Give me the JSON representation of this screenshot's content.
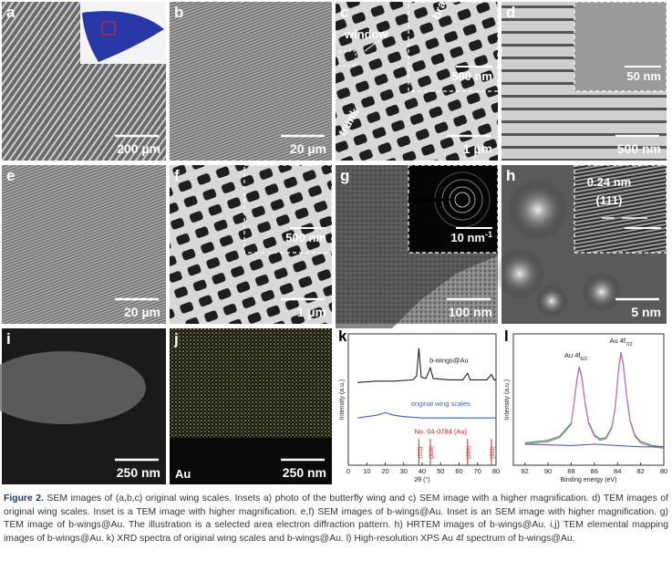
{
  "panels": [
    {
      "label": "a",
      "scale_bar": "200 µm"
    },
    {
      "label": "b",
      "scale_bar": "20 µm"
    },
    {
      "label": "c",
      "scale_bar": "1 µm",
      "inset_scale_bar": "500 nm",
      "notes": [
        "window",
        "branch",
        "trunk"
      ]
    },
    {
      "label": "d",
      "scale_bar": "500 nm",
      "inset_scale_bar": "50 nm"
    },
    {
      "label": "e",
      "scale_bar": "20 µm"
    },
    {
      "label": "f",
      "scale_bar": "1 µm",
      "inset_scale_bar": "500 nm"
    },
    {
      "label": "g",
      "scale_bar": "100 nm",
      "inset_scale_bar": {
        "text": "10 nm",
        "sup": "-1"
      }
    },
    {
      "label": "h",
      "scale_bar": "5 nm",
      "notes": [
        "0.24 nm",
        "(111)"
      ]
    },
    {
      "label": "i",
      "scale_bar": "250 nm"
    },
    {
      "label": "j",
      "scale_bar": "250 nm",
      "notes": [
        "Au"
      ]
    },
    {
      "label": "k",
      "type": "line",
      "xlabel": "2θ (°)",
      "ylabel": "Intensity (a.u.)",
      "xlim": [
        0,
        80
      ],
      "xticks": [
        0,
        10,
        20,
        30,
        40,
        50,
        60,
        70,
        80
      ],
      "ylim": [
        0,
        10
      ],
      "series": [
        {
          "name": "b-wings@Au",
          "color": "#222222",
          "x": [
            5,
            15,
            25,
            35,
            37,
            38.2,
            39.5,
            42,
            44.4,
            46,
            55,
            62,
            64.6,
            66,
            75,
            77.5,
            79,
            80
          ],
          "values": [
            6.3,
            6.4,
            6.4,
            6.5,
            6.8,
            8.9,
            6.7,
            6.6,
            7.4,
            6.6,
            6.5,
            6.5,
            7.0,
            6.5,
            6.5,
            6.9,
            6.5,
            6.5
          ]
        },
        {
          "name": "original wing scales",
          "color": "#3b5fc0",
          "x": [
            5,
            10,
            15,
            20,
            25,
            30,
            40,
            50,
            60,
            70,
            80
          ],
          "values": [
            3.6,
            3.7,
            3.8,
            4.0,
            3.8,
            3.7,
            3.6,
            3.6,
            3.6,
            3.6,
            3.6
          ]
        }
      ],
      "reference": {
        "name": "No. 04-0784 (Au)",
        "color": "#d62020",
        "peaks": [
          {
            "x": 38.2,
            "label": "(111)"
          },
          {
            "x": 44.4,
            "label": "(200)"
          },
          {
            "x": 64.6,
            "label": "(220)"
          },
          {
            "x": 77.5,
            "label": "(311)"
          }
        ]
      }
    },
    {
      "label": "l",
      "type": "line",
      "xlabel": "Binding energy (eV)",
      "ylabel": "Intensity (a.u.)",
      "xlim": [
        93,
        80
      ],
      "xticks": [
        92,
        90,
        88,
        86,
        84,
        82,
        80
      ],
      "ylim": [
        0,
        10
      ],
      "series": [
        {
          "color": "#2e9e45",
          "x": [
            92,
            91,
            90,
            89,
            88,
            87.8,
            87.5,
            87.3,
            87.1,
            86.8,
            86.5,
            86,
            85.5,
            85,
            84.5,
            84.2,
            83.9,
            83.7,
            83.5,
            83.2,
            82.9,
            82.5,
            82,
            81,
            80
          ],
          "values": [
            1.7,
            1.8,
            1.9,
            2.2,
            3.2,
            4.5,
            6.6,
            7.5,
            6.8,
            4.8,
            3.3,
            2.3,
            2.0,
            2.1,
            2.9,
            4.4,
            7.4,
            8.6,
            7.7,
            5.2,
            3.4,
            2.3,
            1.8,
            1.5,
            1.4
          ]
        },
        {
          "color": "#c86cc8",
          "x": [
            92,
            91,
            90,
            89,
            88,
            87.8,
            87.5,
            87.3,
            87.1,
            86.8,
            86.5,
            86,
            85.5,
            85,
            84.5,
            84.2,
            83.9,
            83.7,
            83.5,
            83.2,
            82.9,
            82.5,
            82,
            81,
            80
          ],
          "values": [
            1.6,
            1.7,
            1.8,
            2.1,
            3.1,
            4.4,
            6.5,
            7.4,
            6.7,
            4.7,
            3.2,
            2.2,
            1.9,
            2.0,
            2.8,
            4.3,
            7.3,
            8.5,
            7.6,
            5.1,
            3.3,
            2.2,
            1.7,
            1.4,
            1.3
          ]
        },
        {
          "color": "#4a5fc8",
          "x": [
            92,
            88,
            86,
            84,
            82,
            80
          ],
          "values": [
            1.6,
            1.5,
            1.6,
            1.5,
            1.4,
            1.4
          ]
        }
      ],
      "annotations": [
        {
          "text": "Au 4f",
          "sub": "5/2"
        },
        {
          "text": "Au 4f",
          "sub": "7/2"
        }
      ]
    }
  ],
  "caption": {
    "label": "Figure 2.",
    "text": "SEM images of (a,b,c) original wing scales. Insets a) photo of the butterfly wing and c) SEM image with a higher magnification. d) TEM images of original wing scales. Inset is a TEM image with higher magnification. e,f) SEM images of b-wings@Au. Inset is an SEM image with higher magnification. g) TEM image of b-wings@Au. The illustration is a selected area electron diffraction pattern. h) HRTEM images of b-wings@Au. i,j) TEM elemental mapping images of b-wings@Au. k) XRD spectra of original wing scales and b-wings@Au. l) High-resolution XPS Au 4f spectrum of b-wings@Au."
  }
}
